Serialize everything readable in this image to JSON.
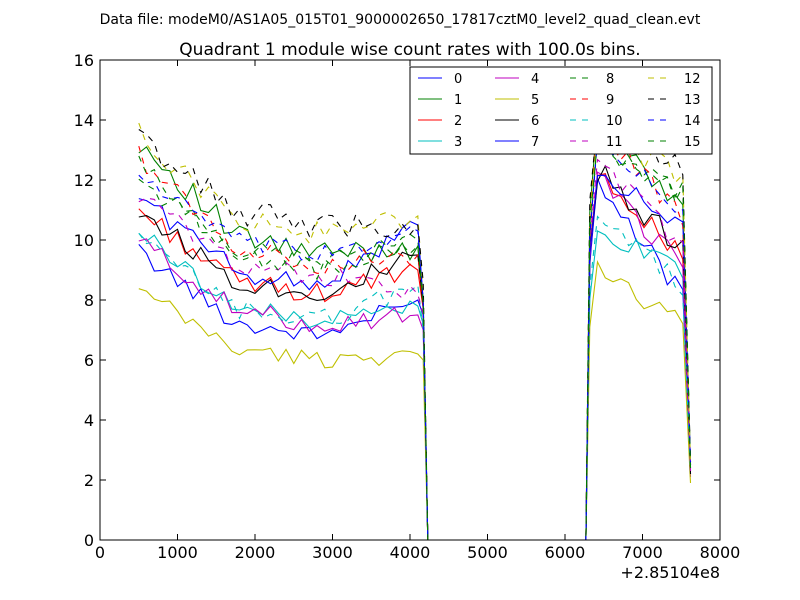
{
  "chart_data": {
    "type": "line",
    "suptitle": "Data file: modeM0/AS1A05_015T01_9000002650_17817cztM0_level2_quad_clean.evt",
    "title": "Quadrant 1 module wise count rates with 100.0s bins.",
    "xlabel": "",
    "ylabel": "",
    "x_offset_label": "+2.85104e8",
    "xlim": [
      0,
      8000
    ],
    "ylim": [
      0,
      16
    ],
    "xticks": [
      0,
      1000,
      2000,
      3000,
      4000,
      5000,
      6000,
      7000,
      8000
    ],
    "yticks": [
      0,
      2,
      4,
      6,
      8,
      10,
      12,
      14,
      16
    ],
    "legend_position": "top-right",
    "legend_columns": 4,
    "segments": [
      {
        "x_start": 500,
        "x_end": 4100,
        "n": 37
      },
      {
        "x_start": 4170,
        "x_end": 4170,
        "n": 1
      },
      {
        "x_start": 4230,
        "x_end": 6270,
        "n": 3
      },
      {
        "x_start": 6320,
        "x_end": 7620,
        "n": 14
      }
    ],
    "series": [
      {
        "name": "0",
        "color": "#0000ff",
        "dash": "solid",
        "start": 9.6,
        "mid": 6.8,
        "end": 8.0,
        "drop": 7.5,
        "noise": 0.3,
        "peak": 11.8,
        "tail": 7.8,
        "final": 2.2
      },
      {
        "name": "1",
        "color": "#008000",
        "dash": "solid",
        "start": 13.3,
        "mid": 9.5,
        "end": 9.8,
        "drop": 7.9,
        "noise": 0.45,
        "peak": 14.0,
        "tail": 10.5,
        "final": 2.5
      },
      {
        "name": "2",
        "color": "#ff0000",
        "dash": "solid",
        "start": 11.0,
        "mid": 8.2,
        "end": 9.0,
        "drop": 7.7,
        "noise": 0.35,
        "peak": 12.5,
        "tail": 9.0,
        "final": 2.3
      },
      {
        "name": "3",
        "color": "#00bfbf",
        "dash": "solid",
        "start": 10.3,
        "mid": 7.3,
        "end": 7.8,
        "drop": 7.2,
        "noise": 0.3,
        "peak": 10.3,
        "tail": 8.8,
        "final": 2.4
      },
      {
        "name": "4",
        "color": "#bf00bf",
        "dash": "solid",
        "start": 10.0,
        "mid": 7.2,
        "end": 7.5,
        "drop": 7.0,
        "noise": 0.35,
        "peak": 12.0,
        "tail": 8.8,
        "final": 2.1
      },
      {
        "name": "5",
        "color": "#bfbf00",
        "dash": "solid",
        "start": 8.3,
        "mid": 6.0,
        "end": 6.2,
        "drop": 6.0,
        "noise": 0.3,
        "peak": 9.1,
        "tail": 7.0,
        "final": 1.9
      },
      {
        "name": "6",
        "color": "#000000",
        "dash": "solid",
        "start": 11.0,
        "mid": 8.2,
        "end": 9.5,
        "drop": 7.8,
        "noise": 0.35,
        "peak": 12.3,
        "tail": 9.5,
        "final": 2.2
      },
      {
        "name": "7",
        "color": "#0000ff",
        "dash": "solid",
        "start": 11.5,
        "mid": 8.5,
        "end": 10.5,
        "drop": 7.9,
        "noise": 0.35,
        "peak": 12.2,
        "tail": 10.2,
        "final": 2.6
      },
      {
        "name": "8",
        "color": "#008000",
        "dash": "dashed",
        "start": 12.0,
        "mid": 9.3,
        "end": 10.0,
        "drop": 8.0,
        "noise": 0.35,
        "peak": 13.0,
        "tail": 11.5,
        "final": 2.5
      },
      {
        "name": "9",
        "color": "#ff0000",
        "dash": "dashed",
        "start": 12.8,
        "mid": 9.2,
        "end": 9.5,
        "drop": 7.9,
        "noise": 0.35,
        "peak": 13.8,
        "tail": 10.5,
        "final": 2.4
      },
      {
        "name": "10",
        "color": "#00bfbf",
        "dash": "dashed",
        "start": 10.0,
        "mid": 7.3,
        "end": 8.5,
        "drop": 7.0,
        "noise": 0.35,
        "peak": 10.8,
        "tail": 8.2,
        "final": 2.3
      },
      {
        "name": "11",
        "color": "#bf00bf",
        "dash": "dashed",
        "start": 11.5,
        "mid": 8.8,
        "end": 8.2,
        "drop": 7.5,
        "noise": 0.35,
        "peak": 12.8,
        "tail": 9.5,
        "final": 2.3
      },
      {
        "name": "12",
        "color": "#bfbf00",
        "dash": "dashed",
        "start": 13.5,
        "mid": 10.2,
        "end": 10.8,
        "drop": 8.2,
        "noise": 0.4,
        "peak": 13.8,
        "tail": 11.8,
        "final": 2.5
      },
      {
        "name": "13",
        "color": "#000000",
        "dash": "dashed",
        "start": 13.4,
        "mid": 10.5,
        "end": 10.5,
        "drop": 8.6,
        "noise": 0.45,
        "peak": 14.5,
        "tail": 12.2,
        "final": 2.6
      },
      {
        "name": "14",
        "color": "#0000ff",
        "dash": "dashed",
        "start": 12.2,
        "mid": 9.5,
        "end": 10.3,
        "drop": 8.0,
        "noise": 0.35,
        "peak": 13.0,
        "tail": 11.0,
        "final": 2.5
      },
      {
        "name": "15",
        "color": "#008000",
        "dash": "dashed",
        "start": 12.5,
        "mid": 9.0,
        "end": 9.8,
        "drop": 7.9,
        "noise": 0.35,
        "peak": 13.5,
        "tail": 11.2,
        "final": 2.4
      }
    ]
  }
}
